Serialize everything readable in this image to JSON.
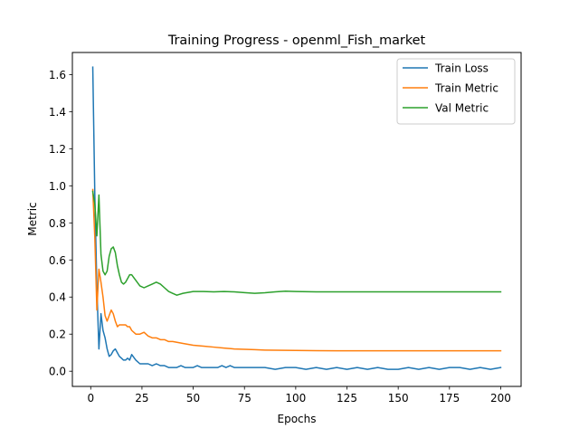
{
  "chart_data": {
    "type": "line",
    "title": "Training Progress - openml_Fish_market",
    "xlabel": "Epochs",
    "ylabel": "Metric",
    "xlim": [
      -8.95,
      209.95
    ],
    "ylim": [
      -0.082,
      1.719
    ],
    "xticks": [
      0,
      25,
      50,
      75,
      100,
      125,
      150,
      175,
      200
    ],
    "xtick_labels": [
      "0",
      "25",
      "50",
      "75",
      "100",
      "125",
      "150",
      "175",
      "200"
    ],
    "yticks": [
      0.0,
      0.2,
      0.4,
      0.6,
      0.8,
      1.0,
      1.2,
      1.4,
      1.6
    ],
    "ytick_labels": [
      "0.0",
      "0.2",
      "0.4",
      "0.6",
      "0.8",
      "1.0",
      "1.2",
      "1.4",
      "1.6"
    ],
    "grid": false,
    "legend_position": "upper right",
    "series": [
      {
        "name": "Train Loss",
        "color": "#1f77b4",
        "x": [
          1,
          2,
          3,
          4,
          5,
          6,
          7,
          8,
          9,
          10,
          11,
          12,
          13,
          14,
          15,
          16,
          17,
          18,
          19,
          20,
          22,
          24,
          26,
          28,
          30,
          32,
          34,
          36,
          38,
          40,
          42,
          44,
          46,
          48,
          50,
          52,
          54,
          56,
          58,
          60,
          62,
          64,
          66,
          68,
          70,
          72,
          74,
          76,
          78,
          80,
          85,
          90,
          95,
          100,
          105,
          110,
          115,
          120,
          125,
          130,
          135,
          140,
          145,
          150,
          155,
          160,
          165,
          170,
          175,
          180,
          185,
          190,
          195,
          200
        ],
        "y": [
          1.64,
          0.95,
          0.45,
          0.12,
          0.31,
          0.22,
          0.18,
          0.12,
          0.08,
          0.09,
          0.11,
          0.12,
          0.1,
          0.08,
          0.07,
          0.06,
          0.06,
          0.07,
          0.06,
          0.09,
          0.06,
          0.04,
          0.04,
          0.04,
          0.03,
          0.04,
          0.03,
          0.03,
          0.02,
          0.02,
          0.02,
          0.03,
          0.02,
          0.02,
          0.02,
          0.03,
          0.02,
          0.02,
          0.02,
          0.02,
          0.02,
          0.03,
          0.02,
          0.03,
          0.02,
          0.02,
          0.02,
          0.02,
          0.02,
          0.02,
          0.02,
          0.01,
          0.02,
          0.02,
          0.01,
          0.02,
          0.01,
          0.02,
          0.01,
          0.02,
          0.01,
          0.02,
          0.01,
          0.01,
          0.02,
          0.01,
          0.02,
          0.01,
          0.02,
          0.02,
          0.01,
          0.02,
          0.01,
          0.02
        ]
      },
      {
        "name": "Train Metric",
        "color": "#ff7f0e",
        "x": [
          1,
          2,
          3,
          4,
          5,
          6,
          7,
          8,
          9,
          10,
          11,
          12,
          13,
          14,
          15,
          16,
          17,
          18,
          19,
          20,
          22,
          24,
          26,
          28,
          30,
          32,
          34,
          36,
          38,
          40,
          45,
          50,
          55,
          60,
          65,
          70,
          75,
          80,
          85,
          90,
          100,
          110,
          120,
          130,
          140,
          150,
          160,
          170,
          180,
          190,
          200
        ],
        "y": [
          0.98,
          0.72,
          0.33,
          0.55,
          0.48,
          0.4,
          0.3,
          0.27,
          0.3,
          0.33,
          0.31,
          0.27,
          0.24,
          0.25,
          0.25,
          0.25,
          0.25,
          0.24,
          0.24,
          0.22,
          0.2,
          0.2,
          0.21,
          0.19,
          0.18,
          0.18,
          0.17,
          0.17,
          0.16,
          0.16,
          0.15,
          0.14,
          0.135,
          0.13,
          0.125,
          0.12,
          0.118,
          0.116,
          0.114,
          0.113,
          0.112,
          0.111,
          0.11,
          0.11,
          0.11,
          0.11,
          0.11,
          0.11,
          0.11,
          0.11,
          0.11
        ]
      },
      {
        "name": "Val Metric",
        "color": "#2ca02c",
        "x": [
          1,
          2,
          3,
          4,
          5,
          6,
          7,
          8,
          9,
          10,
          11,
          12,
          13,
          14,
          15,
          16,
          17,
          18,
          19,
          20,
          22,
          24,
          26,
          28,
          30,
          32,
          34,
          36,
          38,
          40,
          42,
          45,
          50,
          55,
          60,
          65,
          70,
          75,
          80,
          85,
          90,
          95,
          100,
          110,
          120,
          130,
          140,
          150,
          160,
          170,
          180,
          190,
          200
        ],
        "y": [
          0.97,
          0.9,
          0.73,
          0.95,
          0.63,
          0.54,
          0.52,
          0.54,
          0.62,
          0.66,
          0.67,
          0.64,
          0.57,
          0.52,
          0.48,
          0.47,
          0.48,
          0.5,
          0.52,
          0.52,
          0.49,
          0.46,
          0.45,
          0.46,
          0.47,
          0.48,
          0.47,
          0.45,
          0.43,
          0.42,
          0.41,
          0.42,
          0.43,
          0.43,
          0.428,
          0.43,
          0.428,
          0.424,
          0.42,
          0.423,
          0.428,
          0.432,
          0.43,
          0.428,
          0.428,
          0.428,
          0.428,
          0.428,
          0.428,
          0.428,
          0.428,
          0.428,
          0.428
        ]
      }
    ]
  }
}
